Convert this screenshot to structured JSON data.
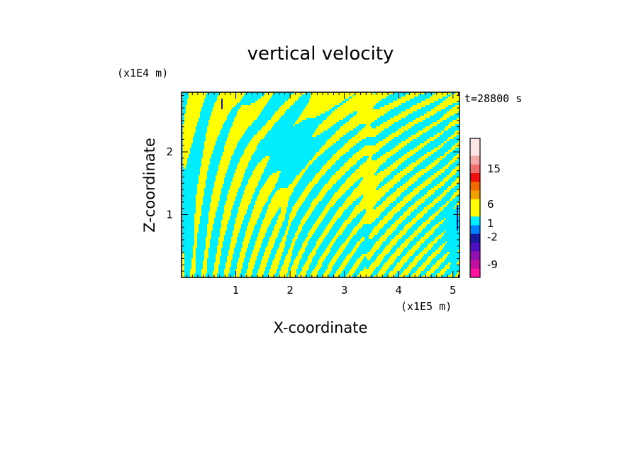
{
  "chart_data": {
    "type": "heatmap",
    "title": "vertical velocity",
    "xlabel": "X-coordinate",
    "ylabel": "Z-coordinate",
    "x_unit": "(x1E5 m)",
    "y_unit": "(x1E4 m)",
    "time_label": "t=28800 s",
    "xlim": [
      0,
      5.12
    ],
    "ylim": [
      0,
      2.95
    ],
    "x_ticks": [
      1,
      2,
      3,
      4,
      5
    ],
    "y_ticks": [
      1,
      2
    ],
    "dominant_colors": {
      "updraft": "#ffff00",
      "downdraft": "#00eeff",
      "strong_down": "#1a1aa0"
    },
    "colorbar": {
      "ticks": [
        "15",
        "6",
        "1",
        "-2",
        "-9"
      ],
      "colors": [
        "#ffe6e6",
        "#ffe6e6",
        "#f5aaaa",
        "#f07070",
        "#ee1010",
        "#f06a00",
        "#f0a000",
        "#ffff00",
        "#ffff00",
        "#00eeff",
        "#0080ff",
        "#1a1aa0",
        "#5010c0",
        "#9010b0",
        "#c010a0",
        "#ff10a0"
      ]
    }
  }
}
